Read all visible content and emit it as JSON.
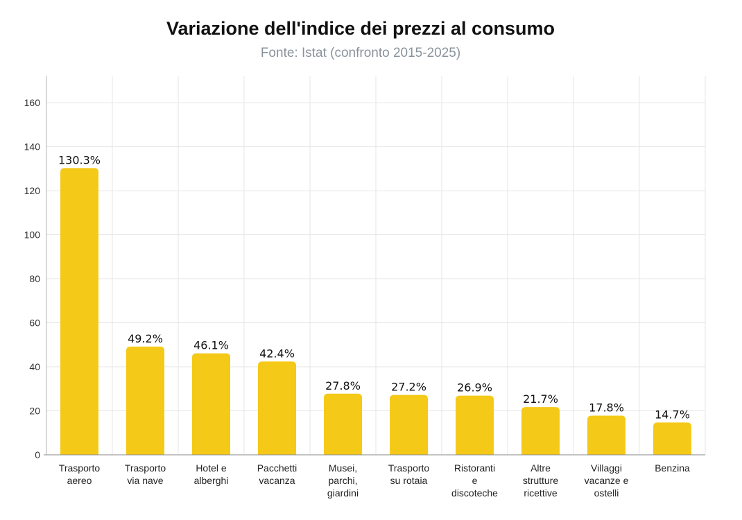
{
  "header": {
    "title": "Variazione dell'indice dei prezzi al consumo",
    "subtitle": "Fonte: Istat (confronto 2015-2025)"
  },
  "chart_data": {
    "type": "bar",
    "title": "Variazione dell'indice dei prezzi al consumo",
    "subtitle": "Fonte: Istat (confronto 2015-2025)",
    "categories": [
      [
        "Trasporto",
        "aereo"
      ],
      [
        "Trasporto",
        "via nave"
      ],
      [
        "Hotel e",
        "alberghi"
      ],
      [
        "Pacchetti",
        "vacanza"
      ],
      [
        "Musei,",
        "parchi,",
        "giardini"
      ],
      [
        "Trasporto",
        "su rotaia"
      ],
      [
        "Ristoranti",
        "e",
        "discoteche"
      ],
      [
        "Altre",
        "strutture",
        "ricettive"
      ],
      [
        "Villaggi",
        "vacanze e",
        "ostelli"
      ],
      [
        "Benzina"
      ]
    ],
    "values": [
      130.3,
      49.2,
      46.1,
      42.4,
      27.8,
      27.2,
      26.9,
      21.7,
      17.8,
      14.7
    ],
    "data_labels": [
      "130.3%",
      "49.2%",
      "46.1%",
      "42.4%",
      "27.8%",
      "27.2%",
      "26.9%",
      "21.7%",
      "17.8%",
      "14.7%"
    ],
    "yticks": [
      0,
      20,
      40,
      60,
      80,
      100,
      120,
      140,
      160
    ],
    "ylim": [
      0,
      172
    ],
    "xlabel": "",
    "ylabel": "",
    "grid": true,
    "bar_color": "#f5c918"
  }
}
